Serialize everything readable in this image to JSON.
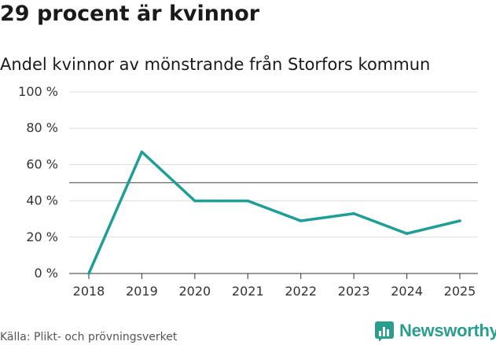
{
  "header": {
    "title": "29 procent är kvinnor",
    "subtitle": "Andel kvinnor av mönstrande från Storfors kommun"
  },
  "chart_data": {
    "type": "line",
    "title": "29 procent är kvinnor",
    "subtitle": "Andel kvinnor av mönstrande från Storfors kommun",
    "categories": [
      "2018",
      "2019",
      "2020",
      "2021",
      "2022",
      "2023",
      "2024",
      "2025"
    ],
    "series": [
      {
        "name": "Andel kvinnor",
        "values": [
          0,
          67,
          40,
          40,
          29,
          33,
          22,
          29
        ]
      }
    ],
    "ylim": [
      0,
      100
    ],
    "yticks": [
      0,
      20,
      40,
      60,
      80,
      100
    ],
    "ytick_labels": [
      "0 %",
      "20 %",
      "40 %",
      "60 %",
      "80 %",
      "100 %"
    ],
    "reference_line": 50,
    "grid": true,
    "xlabel": "",
    "ylabel": "",
    "line_color": "#1f9e96",
    "reference_color": "#666666",
    "grid_color": "#dddddd"
  },
  "footer": {
    "source": "Källa: Plikt- och prövningsverket",
    "brand": "Newsworthy",
    "brand_icon": "bar-chart-logo-icon",
    "brand_color": "#2a9d8f"
  }
}
